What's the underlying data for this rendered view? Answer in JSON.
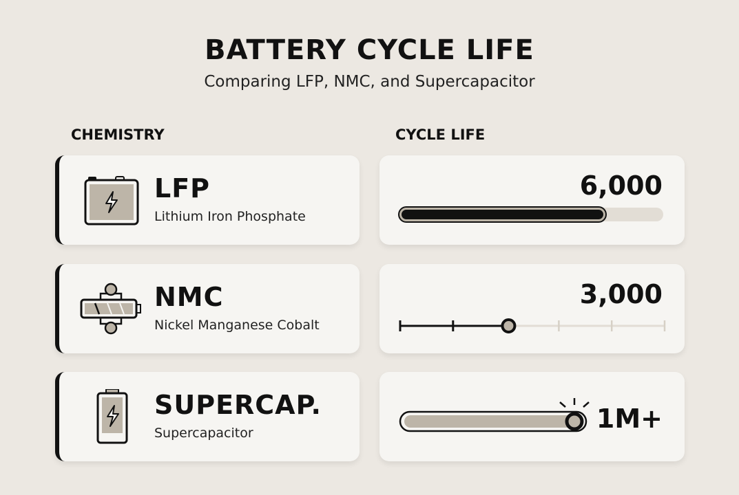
{
  "header": {
    "title": "BATTERY CYCLE LIFE",
    "subtitle": "Comparing LFP, NMC, and Supercapacitor"
  },
  "columns": {
    "chemistry": "CHEMISTRY",
    "cycle_life": "CYCLE LIFE"
  },
  "rows": [
    {
      "name": "LFP",
      "full_name": "Lithium Iron Phosphate",
      "cycle_life": "6,000",
      "icon": "battery-icon",
      "fill_fraction": 0.78
    },
    {
      "name": "NMC",
      "full_name": "Nickel Manganese Cobalt",
      "cycle_life": "3,000",
      "icon": "battery-cells-icon",
      "fill_fraction": 0.41
    },
    {
      "name": "SUPERCAP.",
      "full_name": "Supercapacitor",
      "cycle_life": "1M+",
      "icon": "supercapacitor-icon",
      "fill_fraction": 1.0
    }
  ],
  "colors": {
    "background": "#ece8e2",
    "card": "#f6f5f2",
    "accent": "#111111",
    "fill_muted": "#bdb5a8",
    "track": "#e2ddd5"
  }
}
